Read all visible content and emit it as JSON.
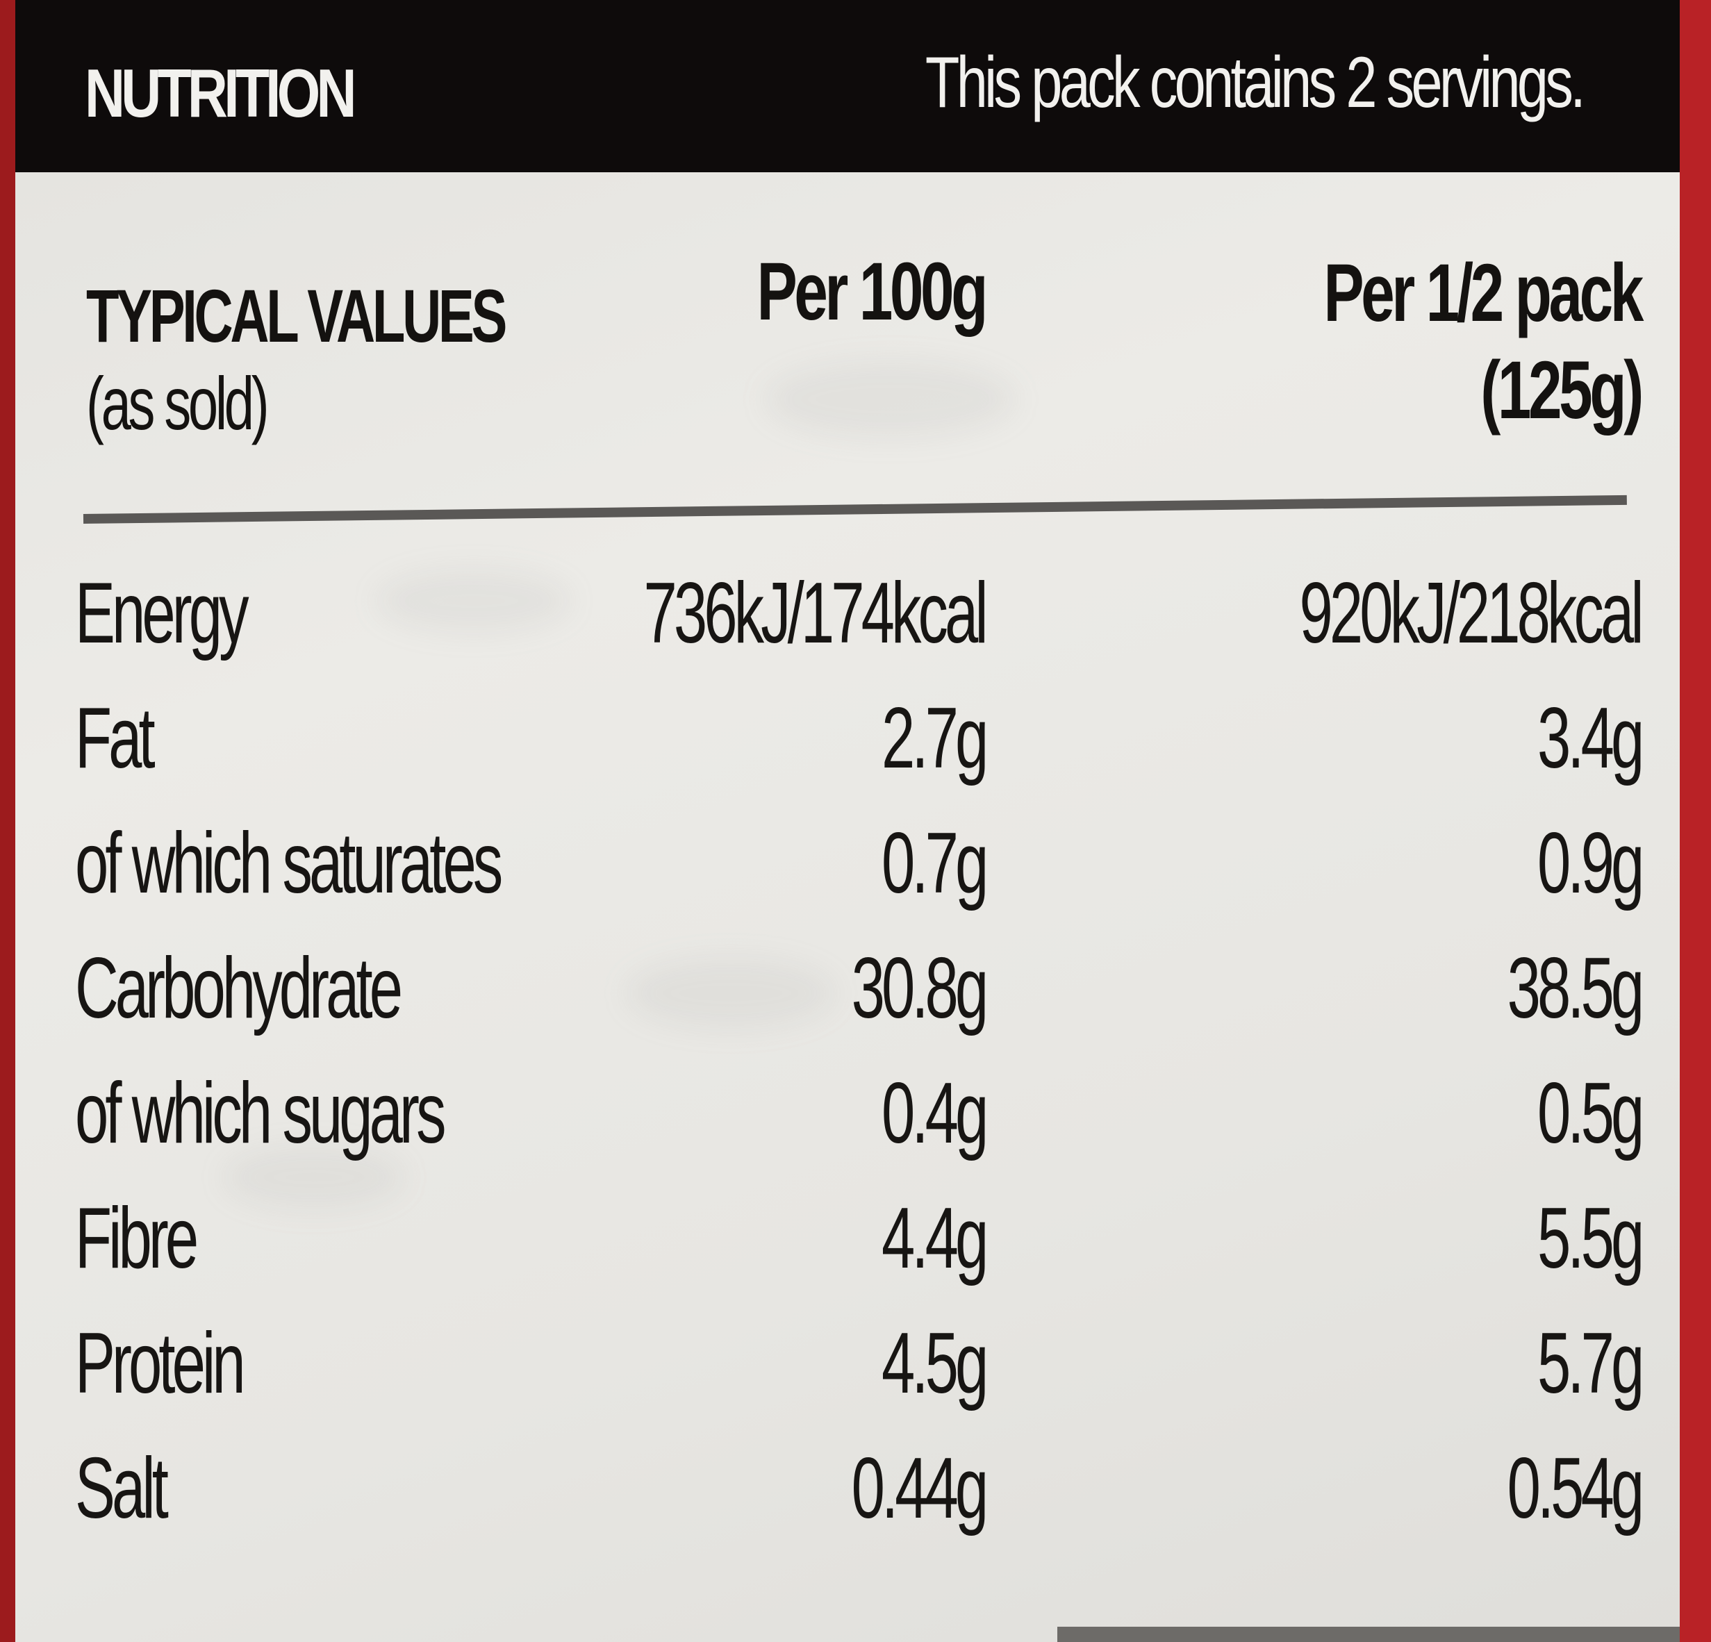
{
  "header": {
    "title": "NUTRITION",
    "servings": "This pack contains 2 servings."
  },
  "columns": {
    "typical_label": "TYPICAL VALUES",
    "typical_sub": "(as sold)",
    "per100": "Per 100g",
    "perhalf_line1": "Per 1/2 pack",
    "perhalf_line2": "(125g)"
  },
  "rows": [
    {
      "name": "Energy",
      "per100": "736kJ/174kcal",
      "perhalf": "920kJ/218kcal"
    },
    {
      "name": "Fat",
      "per100": "2.7g",
      "perhalf": "3.4g"
    },
    {
      "name": "of which saturates",
      "per100": "0.7g",
      "perhalf": "0.9g"
    },
    {
      "name": "Carbohydrate",
      "per100": "30.8g",
      "perhalf": "38.5g"
    },
    {
      "name": "of which sugars",
      "per100": "0.4g",
      "perhalf": "0.5g"
    },
    {
      "name": "Fibre",
      "per100": "4.4g",
      "perhalf": "5.5g"
    },
    {
      "name": "Protein",
      "per100": "4.5g",
      "perhalf": "5.7g"
    },
    {
      "name": "Salt",
      "per100": "0.44g",
      "perhalf": "0.54g"
    }
  ],
  "colors": {
    "packaging_red": "#b51f22",
    "header_black": "#0e0b0b",
    "label_white": "#e8e7e3",
    "text_dark": "#171513"
  }
}
